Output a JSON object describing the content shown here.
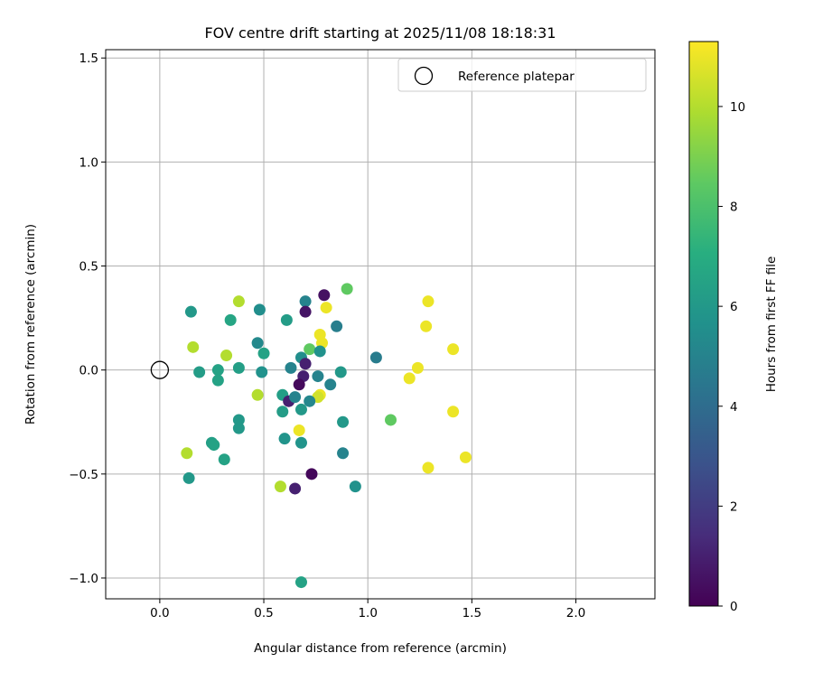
{
  "chart_data": {
    "type": "scatter",
    "title": "FOV centre drift starting at 2025/11/08 18:18:31",
    "xlabel": "Angular distance from reference (arcmin)",
    "ylabel": "Rotation from reference (arcmin)",
    "xlim": [
      -0.26,
      2.38
    ],
    "ylim": [
      -1.1,
      1.54
    ],
    "xticks": [
      0.0,
      0.5,
      1.0,
      1.5,
      2.0
    ],
    "xtick_labels": [
      "0.0",
      "0.5",
      "1.0",
      "1.5",
      "2.0"
    ],
    "yticks": [
      -1.0,
      -0.5,
      0.0,
      0.5,
      1.0,
      1.5
    ],
    "ytick_labels": [
      "−1.0",
      "−0.5",
      "0.0",
      "0.5",
      "1.0",
      "1.5"
    ],
    "grid": true,
    "legend": {
      "placement": "top-right",
      "entries": [
        "Reference platepar"
      ]
    },
    "reference_point": {
      "x": 0.0,
      "y": 0.0
    },
    "colorbar": {
      "label": "Hours from first FF file",
      "colormap": "viridis",
      "range": [
        0,
        11.3
      ],
      "ticks": [
        0,
        2,
        4,
        6,
        8,
        10
      ],
      "tick_labels": [
        "0",
        "2",
        "4",
        "6",
        "8",
        "10"
      ]
    },
    "points": [
      [
        0.15,
        0.28,
        6.0
      ],
      [
        0.16,
        0.11,
        10.0
      ],
      [
        0.19,
        -0.01,
        6.2
      ],
      [
        0.28,
        0.0,
        6.5
      ],
      [
        0.28,
        -0.05,
        6.5
      ],
      [
        0.34,
        0.24,
        6.6
      ],
      [
        0.38,
        0.33,
        10.0
      ],
      [
        0.32,
        0.07,
        10.0
      ],
      [
        0.38,
        0.01,
        6.3
      ],
      [
        0.48,
        0.29,
        5.5
      ],
      [
        0.47,
        0.13,
        5.3
      ],
      [
        0.5,
        0.08,
        6.5
      ],
      [
        0.49,
        -0.01,
        5.7
      ],
      [
        0.47,
        -0.12,
        10.0
      ],
      [
        0.38,
        -0.24,
        6.0
      ],
      [
        0.38,
        -0.28,
        6.0
      ],
      [
        0.25,
        -0.35,
        6.3
      ],
      [
        0.26,
        -0.36,
        6.5
      ],
      [
        0.31,
        -0.43,
        6.5
      ],
      [
        0.13,
        -0.4,
        10.0
      ],
      [
        0.14,
        -0.52,
        6.0
      ],
      [
        0.61,
        0.24,
        6.2
      ],
      [
        0.7,
        0.33,
        5.0
      ],
      [
        0.7,
        0.28,
        0.6
      ],
      [
        0.79,
        0.36,
        0.5
      ],
      [
        0.8,
        0.3,
        11.0
      ],
      [
        0.9,
        0.39,
        8.5
      ],
      [
        0.85,
        0.21,
        4.8
      ],
      [
        0.77,
        0.17,
        11.0
      ],
      [
        0.78,
        0.13,
        11.0
      ],
      [
        0.72,
        0.1,
        8.5
      ],
      [
        0.77,
        0.09,
        5.7
      ],
      [
        0.68,
        0.06,
        5.5
      ],
      [
        0.7,
        0.03,
        1.0
      ],
      [
        0.63,
        0.01,
        5.0
      ],
      [
        0.69,
        -0.03,
        1.0
      ],
      [
        0.76,
        -0.03,
        5.0
      ],
      [
        0.87,
        -0.01,
        6.0
      ],
      [
        0.82,
        -0.07,
        5.0
      ],
      [
        0.67,
        -0.07,
        0.3
      ],
      [
        0.77,
        -0.12,
        11.0
      ],
      [
        0.76,
        -0.13,
        10.5
      ],
      [
        0.59,
        -0.12,
        6.3
      ],
      [
        0.62,
        -0.15,
        1.0
      ],
      [
        0.65,
        -0.13,
        5.0
      ],
      [
        0.72,
        -0.15,
        5.2
      ],
      [
        0.59,
        -0.2,
        6.2
      ],
      [
        0.68,
        -0.19,
        6.0
      ],
      [
        0.88,
        -0.25,
        6.0
      ],
      [
        0.67,
        -0.29,
        11.0
      ],
      [
        0.6,
        -0.33,
        5.8
      ],
      [
        0.68,
        -0.35,
        5.8
      ],
      [
        0.88,
        -0.4,
        5.0
      ],
      [
        0.73,
        -0.5,
        0.2
      ],
      [
        0.58,
        -0.56,
        10.0
      ],
      [
        0.65,
        -0.57,
        1.0
      ],
      [
        0.94,
        -0.56,
        5.7
      ],
      [
        0.68,
        -1.02,
        6.5
      ],
      [
        1.04,
        0.06,
        4.7
      ],
      [
        1.11,
        -0.24,
        8.5
      ],
      [
        1.29,
        0.33,
        11.0
      ],
      [
        1.28,
        0.21,
        11.0
      ],
      [
        1.24,
        0.01,
        11.0
      ],
      [
        1.2,
        -0.04,
        11.0
      ],
      [
        1.41,
        0.1,
        11.0
      ],
      [
        1.41,
        -0.2,
        11.0
      ],
      [
        1.29,
        -0.47,
        11.0
      ],
      [
        1.47,
        -0.42,
        11.0
      ]
    ]
  }
}
